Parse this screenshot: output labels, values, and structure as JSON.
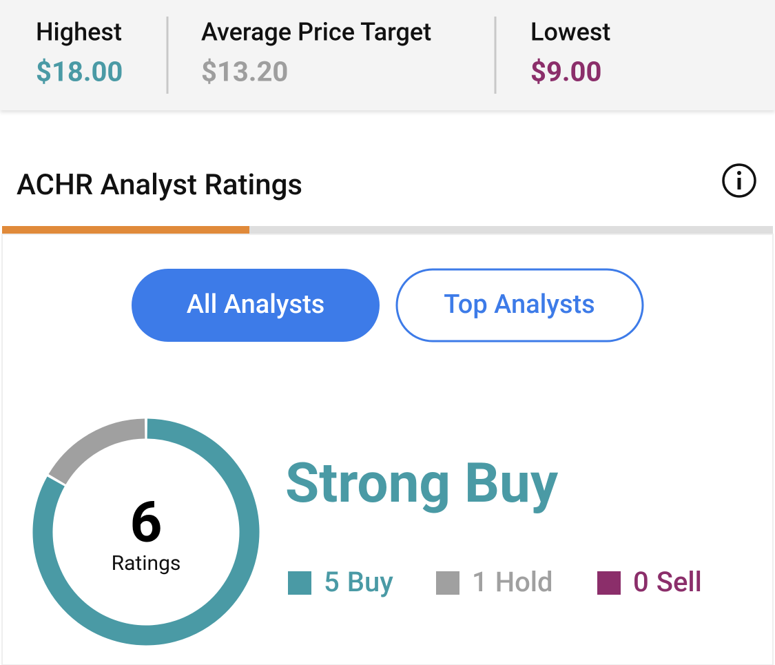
{
  "price_targets": [
    {
      "label": "Highest",
      "value": "$18.00",
      "color": "#4a9aa5"
    },
    {
      "label": "Average Price Target",
      "value": "$13.20",
      "color": "#9e9e9e"
    },
    {
      "label": "Lowest",
      "value": "$9.00",
      "color": "#8b2e6a"
    }
  ],
  "section_title": "ACHR Analyst Ratings",
  "tabs": [
    "All Analysts",
    "Top Analysts"
  ],
  "total": 6,
  "total_label": "Ratings",
  "consensus": "Strong Buy",
  "ratings": [
    {
      "count": 5,
      "label": "Buy",
      "color": "#4a9aa5"
    },
    {
      "count": 1,
      "label": "Hold",
      "color": "#a0a0a0"
    },
    {
      "count": 0,
      "label": "Sell",
      "color": "#8b2e6a"
    }
  ]
}
